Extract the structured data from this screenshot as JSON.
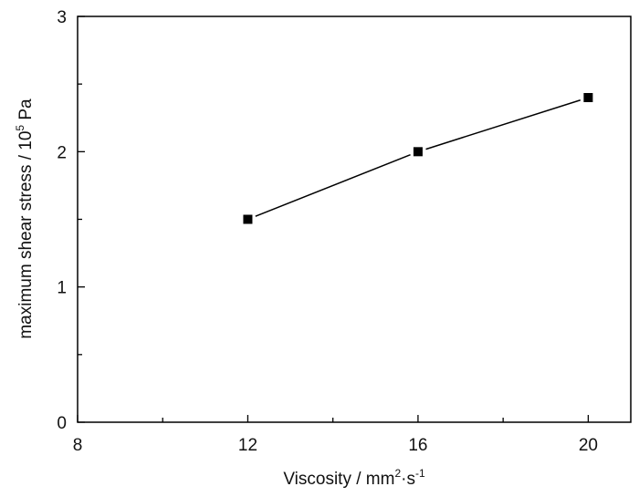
{
  "chart_data": {
    "type": "line",
    "title": "",
    "xlabel": "Viscosity / mm²·s⁻¹",
    "xlabel_parts": {
      "main": "Viscosity / mm",
      "sup1": "2",
      "mid": "·s",
      "sup2": "-1"
    },
    "ylabel": "maximum shear stress / 10⁵ Pa",
    "ylabel_parts": {
      "main": "maximum shear stress / 10",
      "sup": "5",
      "end": " Pa"
    },
    "xlim": [
      8,
      21
    ],
    "ylim": [
      0,
      3
    ],
    "xticks": [
      8,
      12,
      16,
      20
    ],
    "xticks_minor": [
      10,
      14,
      18
    ],
    "yticks": [
      0,
      1,
      2,
      3
    ],
    "yticks_minor": [
      0.5,
      1.5,
      2.5
    ],
    "grid": false,
    "legend": "none",
    "marker": "square",
    "color": "#000000",
    "series": [
      {
        "name": "maximum shear stress",
        "x": [
          12,
          16,
          20
        ],
        "y": [
          1.5,
          2.0,
          2.4
        ]
      }
    ]
  }
}
